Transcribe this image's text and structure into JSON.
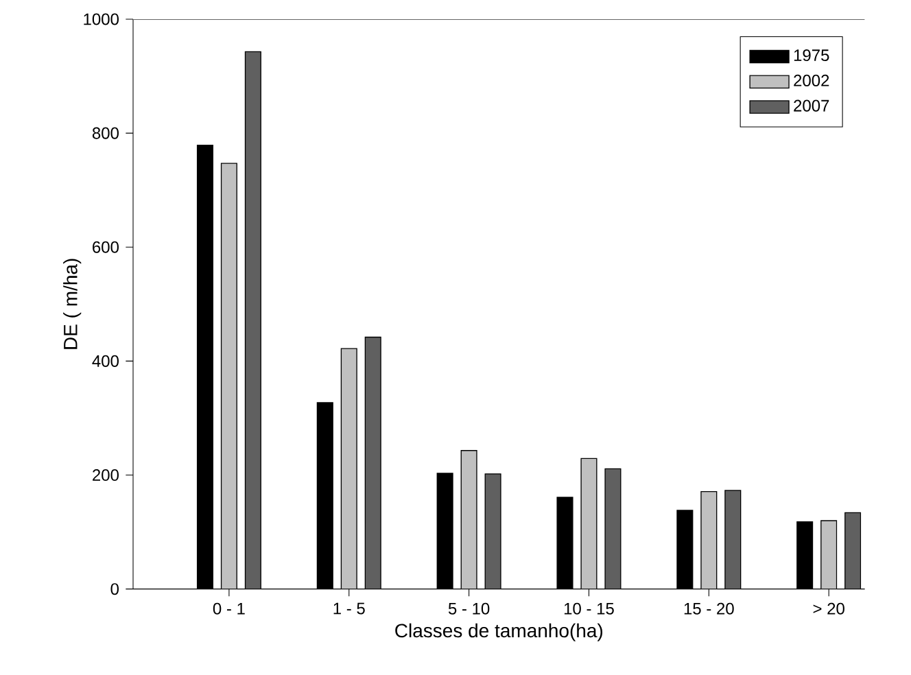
{
  "chart_data": {
    "type": "bar",
    "xlabel": "Classes de tamanho(ha)",
    "ylabel": "DE ( m/ha)",
    "categories": [
      "0 - 1",
      "1 - 5",
      "5 - 10",
      "10 - 15",
      "15 - 20",
      "> 20"
    ],
    "series": [
      {
        "name": "1975",
        "color": "#000000",
        "values": [
          779,
          327,
          203,
          161,
          138,
          118
        ]
      },
      {
        "name": "2002",
        "color": "#c0c0c0",
        "values": [
          747,
          422,
          243,
          229,
          171,
          120
        ]
      },
      {
        "name": "2007",
        "color": "#606060",
        "values": [
          943,
          442,
          202,
          211,
          173,
          134
        ]
      }
    ],
    "ylim": [
      0,
      1000
    ],
    "yticks": [
      0,
      200,
      400,
      600,
      800,
      1000
    ],
    "grid": false,
    "legend": "top right"
  }
}
